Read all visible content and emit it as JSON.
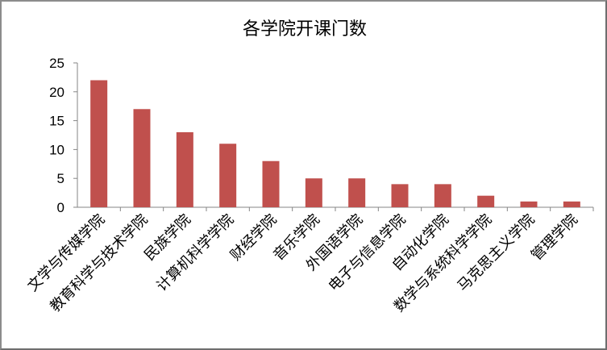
{
  "chart_data": {
    "type": "bar",
    "title": "各学院开课门数",
    "categories": [
      "文学与传媒学院",
      "教育科学与技术学院",
      "民族学院",
      "计算机科学学院",
      "财经学院",
      "音乐学院",
      "外国语学院",
      "电子与信息学院",
      "自动化学院",
      "数学与系统科学学院",
      "马克思主义学院",
      "管理学院"
    ],
    "values": [
      22,
      17,
      13,
      11,
      8,
      5,
      5,
      4,
      4,
      2,
      1,
      1
    ],
    "yticks": [
      0,
      5,
      10,
      15,
      20,
      25
    ],
    "ylim": [
      0,
      25
    ],
    "grid": false,
    "legend": "none",
    "bar_color": "#c0504d"
  }
}
